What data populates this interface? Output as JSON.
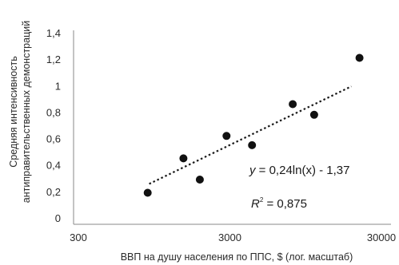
{
  "chart_data": {
    "type": "scatter",
    "x_scale": "log",
    "xlim": [
      300,
      30000
    ],
    "ylim": [
      0,
      1.5
    ],
    "xlabel": "ВВП на душу населения по ППС, $ (лог. масштаб)",
    "ylabel_line1": "Средняя интенсивность",
    "ylabel_line2": "антиправительственных демонстраций",
    "x_ticks": [
      {
        "value": 300,
        "label": "300"
      },
      {
        "value": 3000,
        "label": "3000"
      },
      {
        "value": 30000,
        "label": "30000"
      }
    ],
    "y_ticks": [
      {
        "value": 0,
        "label": "0"
      },
      {
        "value": 0.2,
        "label": "0,2"
      },
      {
        "value": 0.4,
        "label": "0,4"
      },
      {
        "value": 0.6,
        "label": "0,6"
      },
      {
        "value": 0.8,
        "label": "0,8"
      },
      {
        "value": 1.0,
        "label": "1"
      },
      {
        "value": 1.2,
        "label": "1,2"
      },
      {
        "value": 1.4,
        "label": "1,4"
      }
    ],
    "points": [
      {
        "x": 860,
        "y": 0.19
      },
      {
        "x": 1480,
        "y": 0.45
      },
      {
        "x": 1900,
        "y": 0.29
      },
      {
        "x": 2850,
        "y": 0.62
      },
      {
        "x": 4200,
        "y": 0.55
      },
      {
        "x": 7800,
        "y": 0.86
      },
      {
        "x": 10800,
        "y": 0.78
      },
      {
        "x": 21500,
        "y": 1.21
      }
    ],
    "trendline": {
      "type": "logarithmic",
      "a": 0.24,
      "b": -1.37,
      "x_range": [
        880,
        19000
      ],
      "style": "dotted"
    },
    "equation_y_label": "y",
    "equation_text": " =  0,24ln(x) - 1,37",
    "r2_label": "R",
    "r2_exponent": "2",
    "r2_text": " = 0,875",
    "grid": false,
    "marker_color": "#111111"
  }
}
